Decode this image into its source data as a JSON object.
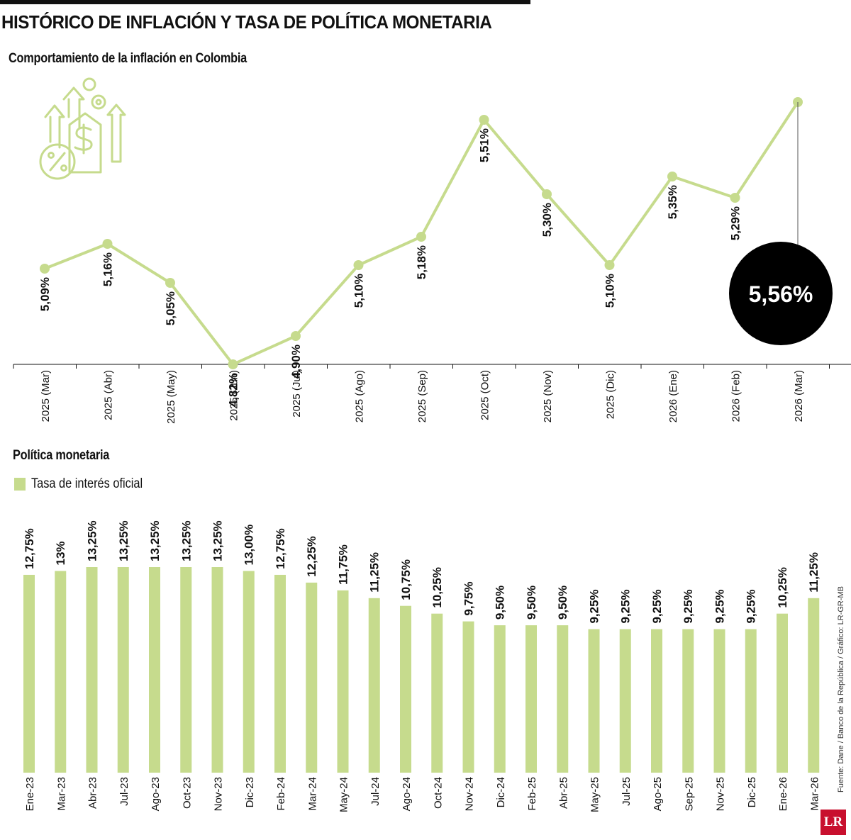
{
  "title": "HISTÓRICO DE INFLACIÓN Y TASA DE POLÍTICA MONETARIA",
  "source": "Fuente: Dane / Banco de la República / Gráfico: LR-GR-MB",
  "logo": "LR",
  "colors": {
    "accent": "#c6db8d",
    "dark": "#000000"
  },
  "chart_data": [
    {
      "type": "line",
      "title": "Comportamiento de la inflación en Colombia",
      "categories": [
        "2025 (Mar)",
        "2025 (Abr)",
        "2025 (May)",
        "2025 (Jun)",
        "2025 (Jul)",
        "2025 (Ago)",
        "2025 (Sep)",
        "2025 (Oct)",
        "2025 (Nov)",
        "2025 (Dic)",
        "2026 (Ene)",
        "2026 (Feb)",
        "2026 (Mar)"
      ],
      "values": [
        5.09,
        5.16,
        5.05,
        4.82,
        4.9,
        5.1,
        5.18,
        5.51,
        5.3,
        5.1,
        5.35,
        5.29,
        5.56
      ],
      "labels": [
        "5,09%",
        "5,16%",
        "5,05%",
        "4,82%",
        "4,90%",
        "5,10%",
        "5,18%",
        "5,51%",
        "5,30%",
        "5,10%",
        "5,35%",
        "5,29%",
        ""
      ],
      "highlight": {
        "index": 12,
        "label": "5,56%"
      },
      "ylim": [
        4.82,
        5.56
      ]
    },
    {
      "type": "bar",
      "title": "Política monetaria",
      "series": [
        {
          "name": "Tasa de interés oficial"
        }
      ],
      "categories": [
        "Ene-23",
        "Mar-23",
        "Abr-23",
        "Jul-23",
        "Ago-23",
        "Oct-23",
        "Nov-23",
        "Dic-23",
        "Feb-24",
        "Mar-24",
        "May-24",
        "Jul-24",
        "Ago-24",
        "Oct-24",
        "Nov-24",
        "Dic-24",
        "Feb-25",
        "Abr-25",
        "May-25",
        "Jul-25",
        "Ago-25",
        "Sep-25",
        "Nov-25",
        "Dic-25",
        "Ene-26",
        "Mar-26"
      ],
      "values": [
        12.75,
        13,
        13.25,
        13.25,
        13.25,
        13.25,
        13.25,
        13.0,
        12.75,
        12.25,
        11.75,
        11.25,
        10.75,
        10.25,
        9.75,
        9.5,
        9.5,
        9.5,
        9.25,
        9.25,
        9.25,
        9.25,
        9.25,
        9.25,
        10.25,
        11.25
      ],
      "labels": [
        "12,75%",
        "13%",
        "13,25%",
        "13,25%",
        "13,25%",
        "13,25%",
        "13,25%",
        "13,00%",
        "12,75%",
        "12,25%",
        "11,75%",
        "11,25%",
        "10,75%",
        "10,25%",
        "9,75%",
        "9,50%",
        "9,50%",
        "9,50%",
        "9,25%",
        "9,25%",
        "9,25%",
        "9,25%",
        "9,25%",
        "9,25%",
        "10,25%",
        "11,25%"
      ],
      "ylim": [
        0,
        13.25
      ]
    }
  ]
}
